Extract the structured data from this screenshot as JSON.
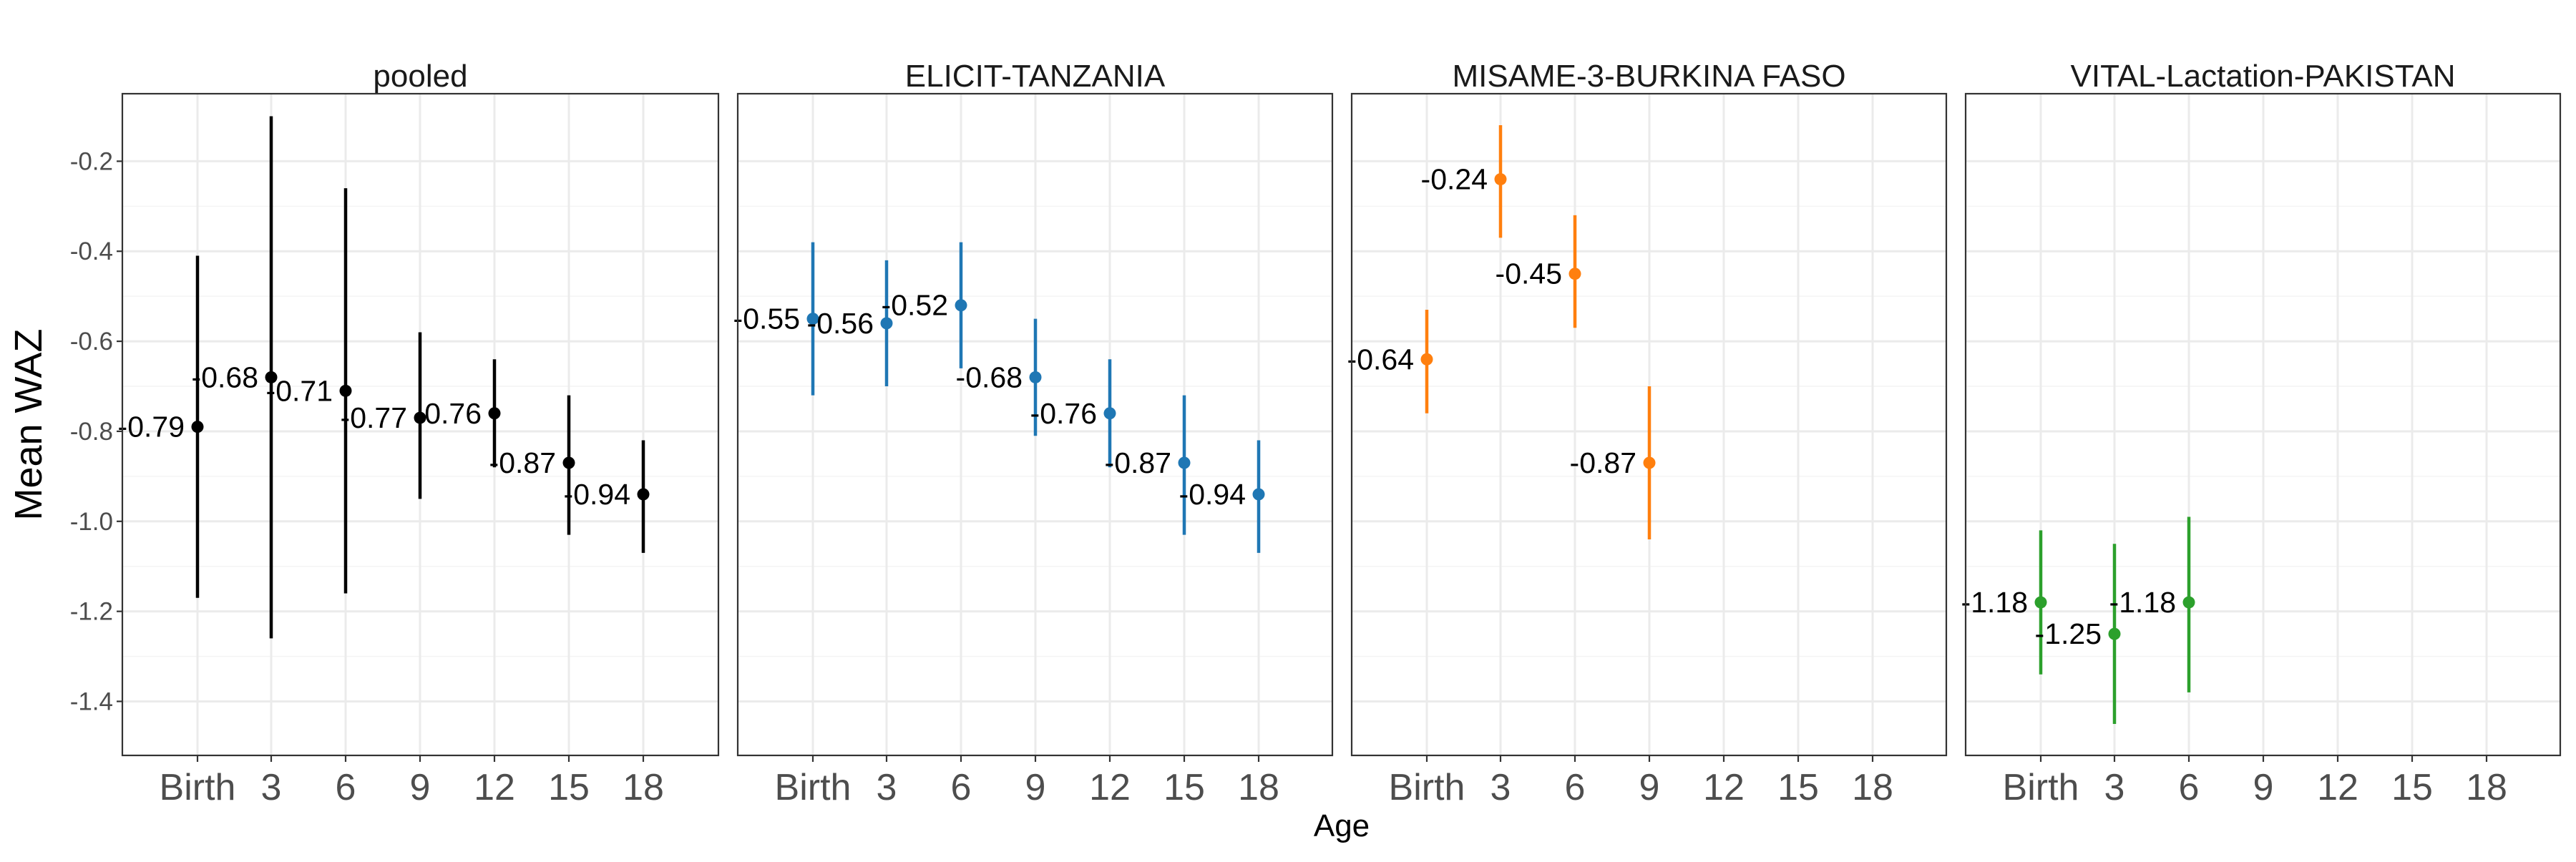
{
  "chart_data": {
    "type": "scatter",
    "subtype": "point-range facets",
    "xlabel": "Age",
    "ylabel": "Mean WAZ",
    "x_categories": [
      "Birth",
      "3",
      "6",
      "9",
      "12",
      "15",
      "18"
    ],
    "yticks": [
      -0.2,
      -0.4,
      -0.6,
      -0.8,
      -1.0,
      -1.2,
      -1.4
    ],
    "ytick_labels": [
      "-0.2",
      "-0.4",
      "-0.6",
      "-0.8",
      "-1.0",
      "-1.2",
      "-1.4"
    ],
    "ylim": [
      -1.52,
      -0.05
    ],
    "grid": true,
    "facets": [
      {
        "title": "pooled",
        "color": "#000000",
        "points": [
          {
            "x": "Birth",
            "y": -0.79,
            "lo": -1.17,
            "hi": -0.41,
            "label": "-0.79"
          },
          {
            "x": "3",
            "y": -0.68,
            "lo": -1.26,
            "hi": -0.1,
            "label": "-0.68"
          },
          {
            "x": "6",
            "y": -0.71,
            "lo": -1.16,
            "hi": -0.26,
            "label": "-0.71"
          },
          {
            "x": "9",
            "y": -0.77,
            "lo": -0.95,
            "hi": -0.58,
            "label": "-0.77"
          },
          {
            "x": "12",
            "y": -0.76,
            "lo": -0.88,
            "hi": -0.64,
            "label": "-0.76"
          },
          {
            "x": "15",
            "y": -0.87,
            "lo": -1.03,
            "hi": -0.72,
            "label": "-0.87"
          },
          {
            "x": "18",
            "y": -0.94,
            "lo": -1.07,
            "hi": -0.82,
            "label": "-0.94"
          }
        ]
      },
      {
        "title": "ELICIT-TANZANIA",
        "color": "#1f77b4",
        "points": [
          {
            "x": "Birth",
            "y": -0.55,
            "lo": -0.72,
            "hi": -0.38,
            "label": "-0.55"
          },
          {
            "x": "3",
            "y": -0.56,
            "lo": -0.7,
            "hi": -0.42,
            "label": "-0.56"
          },
          {
            "x": "6",
            "y": -0.52,
            "lo": -0.66,
            "hi": -0.38,
            "label": "-0.52"
          },
          {
            "x": "9",
            "y": -0.68,
            "lo": -0.81,
            "hi": -0.55,
            "label": "-0.68"
          },
          {
            "x": "12",
            "y": -0.76,
            "lo": -0.88,
            "hi": -0.64,
            "label": "-0.76"
          },
          {
            "x": "15",
            "y": -0.87,
            "lo": -1.03,
            "hi": -0.72,
            "label": "-0.87"
          },
          {
            "x": "18",
            "y": -0.94,
            "lo": -1.07,
            "hi": -0.82,
            "label": "-0.94"
          }
        ]
      },
      {
        "title": "MISAME-3-BURKINA FASO",
        "color": "#ff7f0e",
        "points": [
          {
            "x": "Birth",
            "y": -0.64,
            "lo": -0.76,
            "hi": -0.53,
            "label": "-0.64"
          },
          {
            "x": "3",
            "y": -0.24,
            "lo": -0.37,
            "hi": -0.12,
            "label": "-0.24"
          },
          {
            "x": "6",
            "y": -0.45,
            "lo": -0.57,
            "hi": -0.32,
            "label": "-0.45"
          },
          {
            "x": "9",
            "y": -0.87,
            "lo": -1.04,
            "hi": -0.7,
            "label": "-0.87"
          }
        ]
      },
      {
        "title": "VITAL-Lactation-PAKISTAN",
        "color": "#2ca02c",
        "points": [
          {
            "x": "Birth",
            "y": -1.18,
            "lo": -1.34,
            "hi": -1.02,
            "label": "-1.18"
          },
          {
            "x": "3",
            "y": -1.25,
            "lo": -1.45,
            "hi": -1.05,
            "label": "-1.25"
          },
          {
            "x": "6",
            "y": -1.18,
            "lo": -1.38,
            "hi": -0.99,
            "label": "-1.18"
          }
        ]
      }
    ]
  }
}
